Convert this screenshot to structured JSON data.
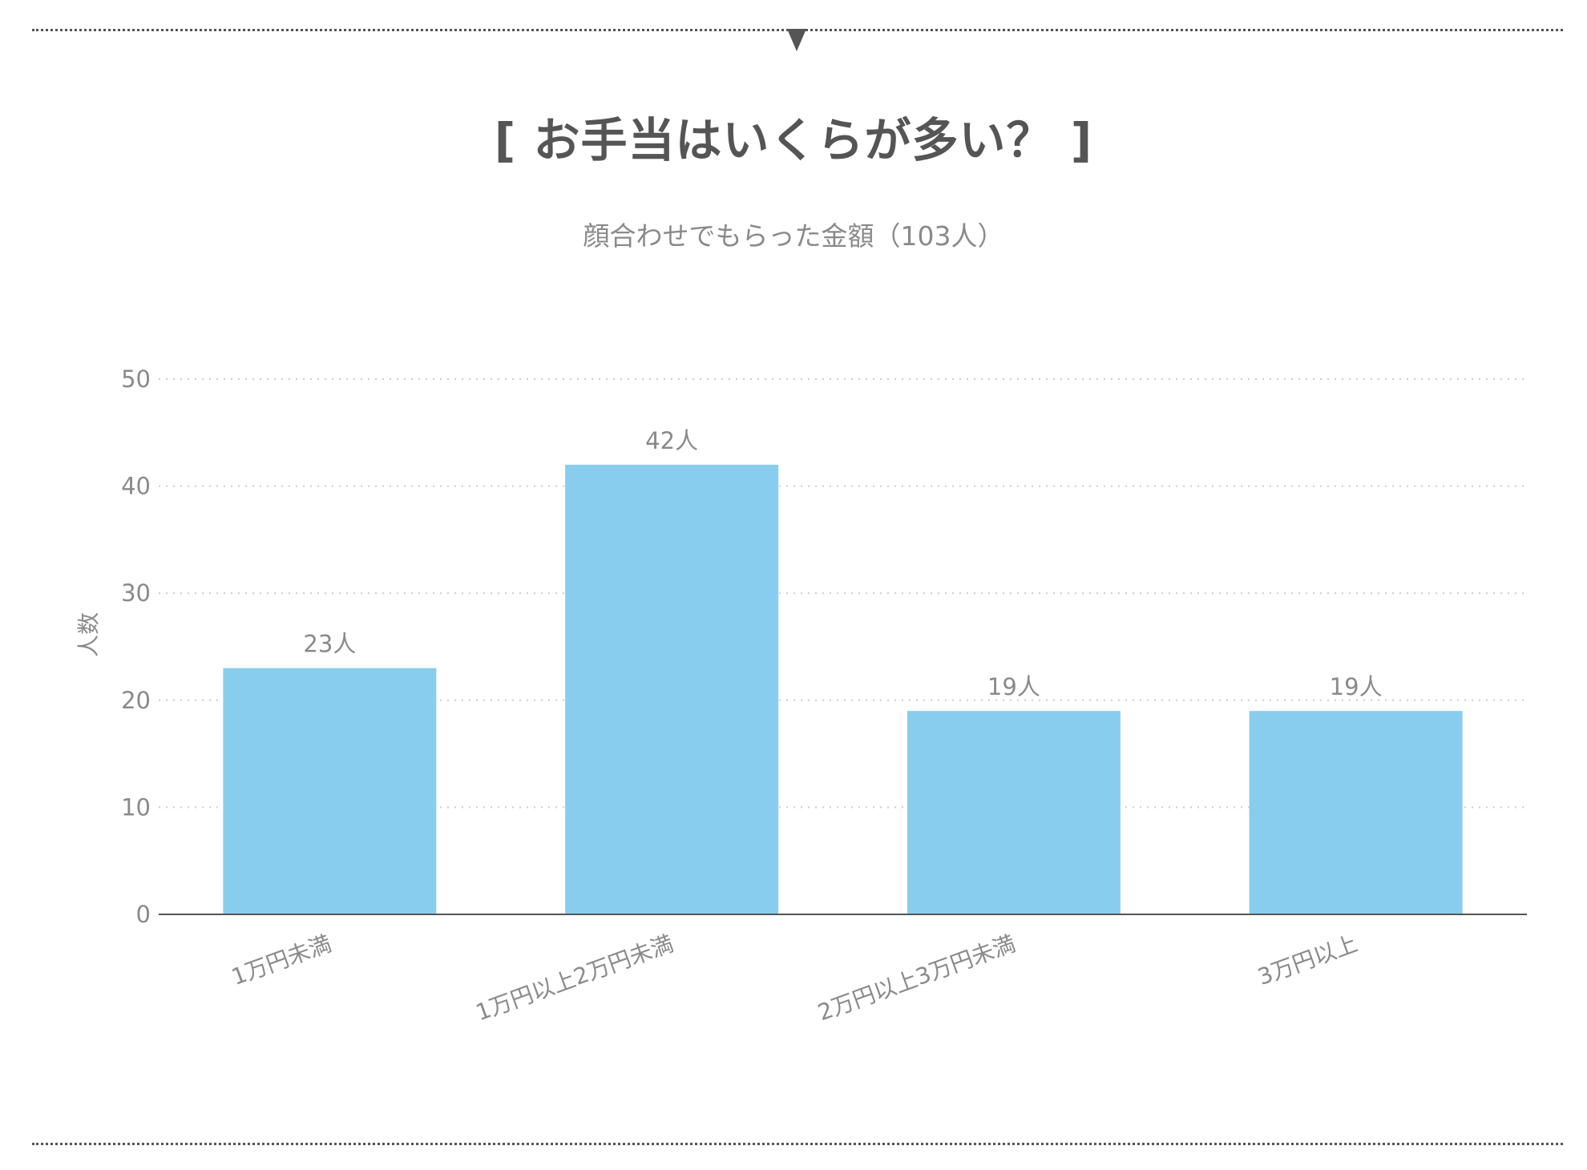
{
  "header": {
    "title": "[ お手当はいくらが多い？ ]",
    "subtitle": "顔合わせでもらった金額（103人）"
  },
  "colors": {
    "bar": "#89cdee",
    "text": "#555555",
    "muted": "#8a8a8a",
    "grid": "#cccccc",
    "axis": "#555555"
  },
  "chart_data": {
    "type": "bar",
    "title": "[ お手当はいくらが多い？ ]",
    "subtitle": "顔合わせでもらった金額（103人）",
    "categories": [
      "1万円未満",
      "1万円以上2万円未満",
      "2万円以上3万円未満",
      "3万円以上"
    ],
    "values": [
      23,
      42,
      19,
      19
    ],
    "data_labels": [
      "23人",
      "42人",
      "19人",
      "19人"
    ],
    "xlabel": "",
    "ylabel": "人数",
    "ylim": [
      0,
      50
    ],
    "yticks": [
      0,
      10,
      20,
      30,
      40,
      50
    ],
    "grid": true,
    "legend": "none"
  }
}
